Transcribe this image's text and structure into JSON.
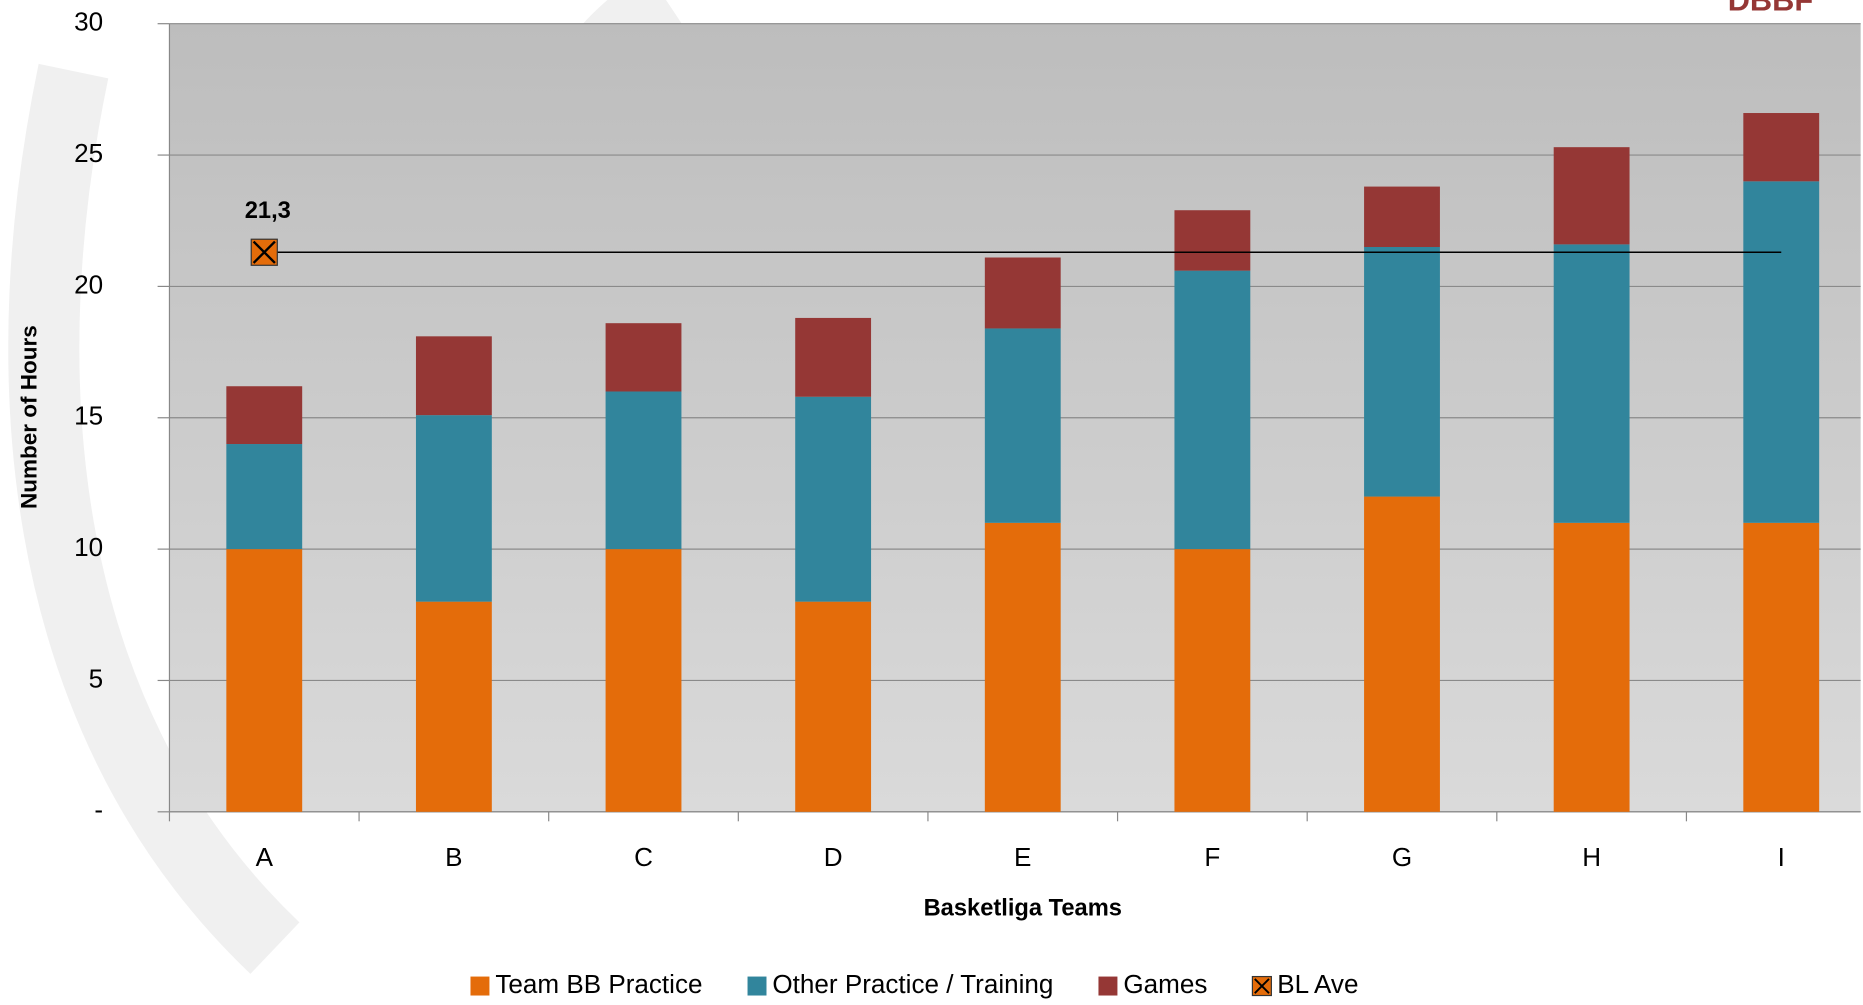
{
  "chart_data": {
    "type": "bar",
    "stacked": true,
    "logo": "DBBF",
    "x_label": "Basketliga Teams",
    "y_label": "Number of Hours",
    "categories": [
      "A",
      "B",
      "C",
      "D",
      "E",
      "F",
      "G",
      "H",
      "I"
    ],
    "series": [
      {
        "name": "Team BB Practice",
        "color": "#e46c0a",
        "values": [
          10,
          8,
          10,
          8,
          11,
          10,
          12,
          11,
          11
        ]
      },
      {
        "name": "Other Practice / Training",
        "color": "#31859c",
        "values": [
          4,
          7.1,
          6,
          7.8,
          7.4,
          10.6,
          9.5,
          10.6,
          13
        ]
      },
      {
        "name": "Games",
        "color": "#953735",
        "values": [
          2.2,
          3,
          2.6,
          3,
          2.7,
          2.3,
          2.3,
          3.7,
          2.6
        ]
      }
    ],
    "average": {
      "name": "BL Ave",
      "color": "#e46c0a",
      "value": 21.3,
      "value_label": "21,3"
    },
    "ylim": [
      0,
      30
    ],
    "yticks": [
      {
        "value": 0,
        "label": "-"
      },
      5,
      10,
      15,
      20,
      25,
      30
    ],
    "grid": true
  }
}
